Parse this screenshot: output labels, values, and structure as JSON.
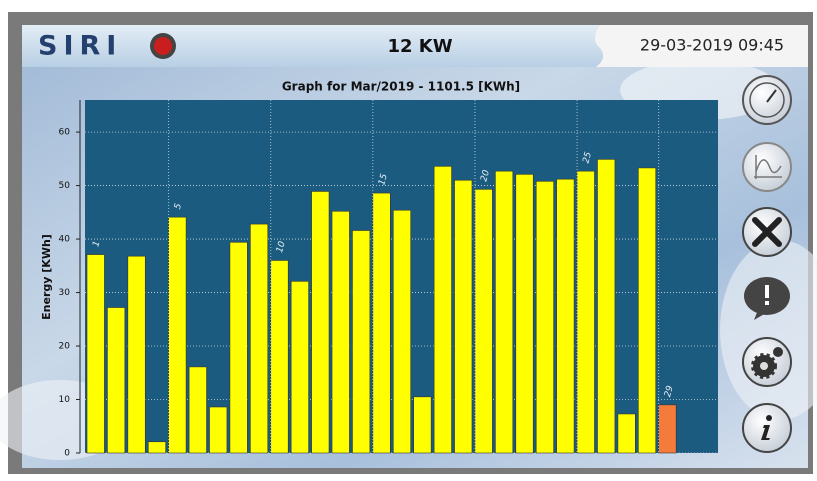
{
  "header": {
    "logo": "SIRI",
    "power": "12 KW",
    "datetime": "29-03-2019 09:45"
  },
  "chart_data": {
    "type": "bar",
    "title": "Graph for Mar/2019 - 1101.5 [KWh]",
    "y_label": "Energy [KWh]",
    "categories": [
      "1",
      null,
      null,
      null,
      "5",
      null,
      null,
      null,
      null,
      "10",
      null,
      null,
      null,
      null,
      "15",
      null,
      null,
      null,
      null,
      "20",
      null,
      null,
      null,
      null,
      "25",
      null,
      null,
      null,
      "29"
    ],
    "values": [
      37.1,
      27.2,
      36.8,
      2.1,
      44.1,
      16.1,
      8.6,
      39.4,
      42.8,
      36.0,
      32.1,
      48.9,
      45.2,
      41.6,
      48.6,
      45.4,
      10.5,
      53.6,
      51.0,
      49.3,
      52.7,
      52.1,
      50.8,
      51.2,
      52.7,
      54.9,
      7.3,
      53.3,
      9.0
    ],
    "colors": [
      "#ffff00",
      "#ffff00",
      "#ffff00",
      "#ffff00",
      "#ffff00",
      "#ffff00",
      "#ffff00",
      "#ffff00",
      "#ffff00",
      "#ffff00",
      "#ffff00",
      "#ffff00",
      "#ffff00",
      "#ffff00",
      "#ffff00",
      "#ffff00",
      "#ffff00",
      "#ffff00",
      "#ffff00",
      "#ffff00",
      "#ffff00",
      "#ffff00",
      "#ffff00",
      "#ffff00",
      "#ffff00",
      "#ffff00",
      "#ffff00",
      "#ffff00",
      "#f47b3a"
    ],
    "ylim": [
      0,
      66
    ],
    "yticks": [
      0,
      10,
      20,
      30,
      40,
      50,
      60
    ],
    "grid": true
  }
}
